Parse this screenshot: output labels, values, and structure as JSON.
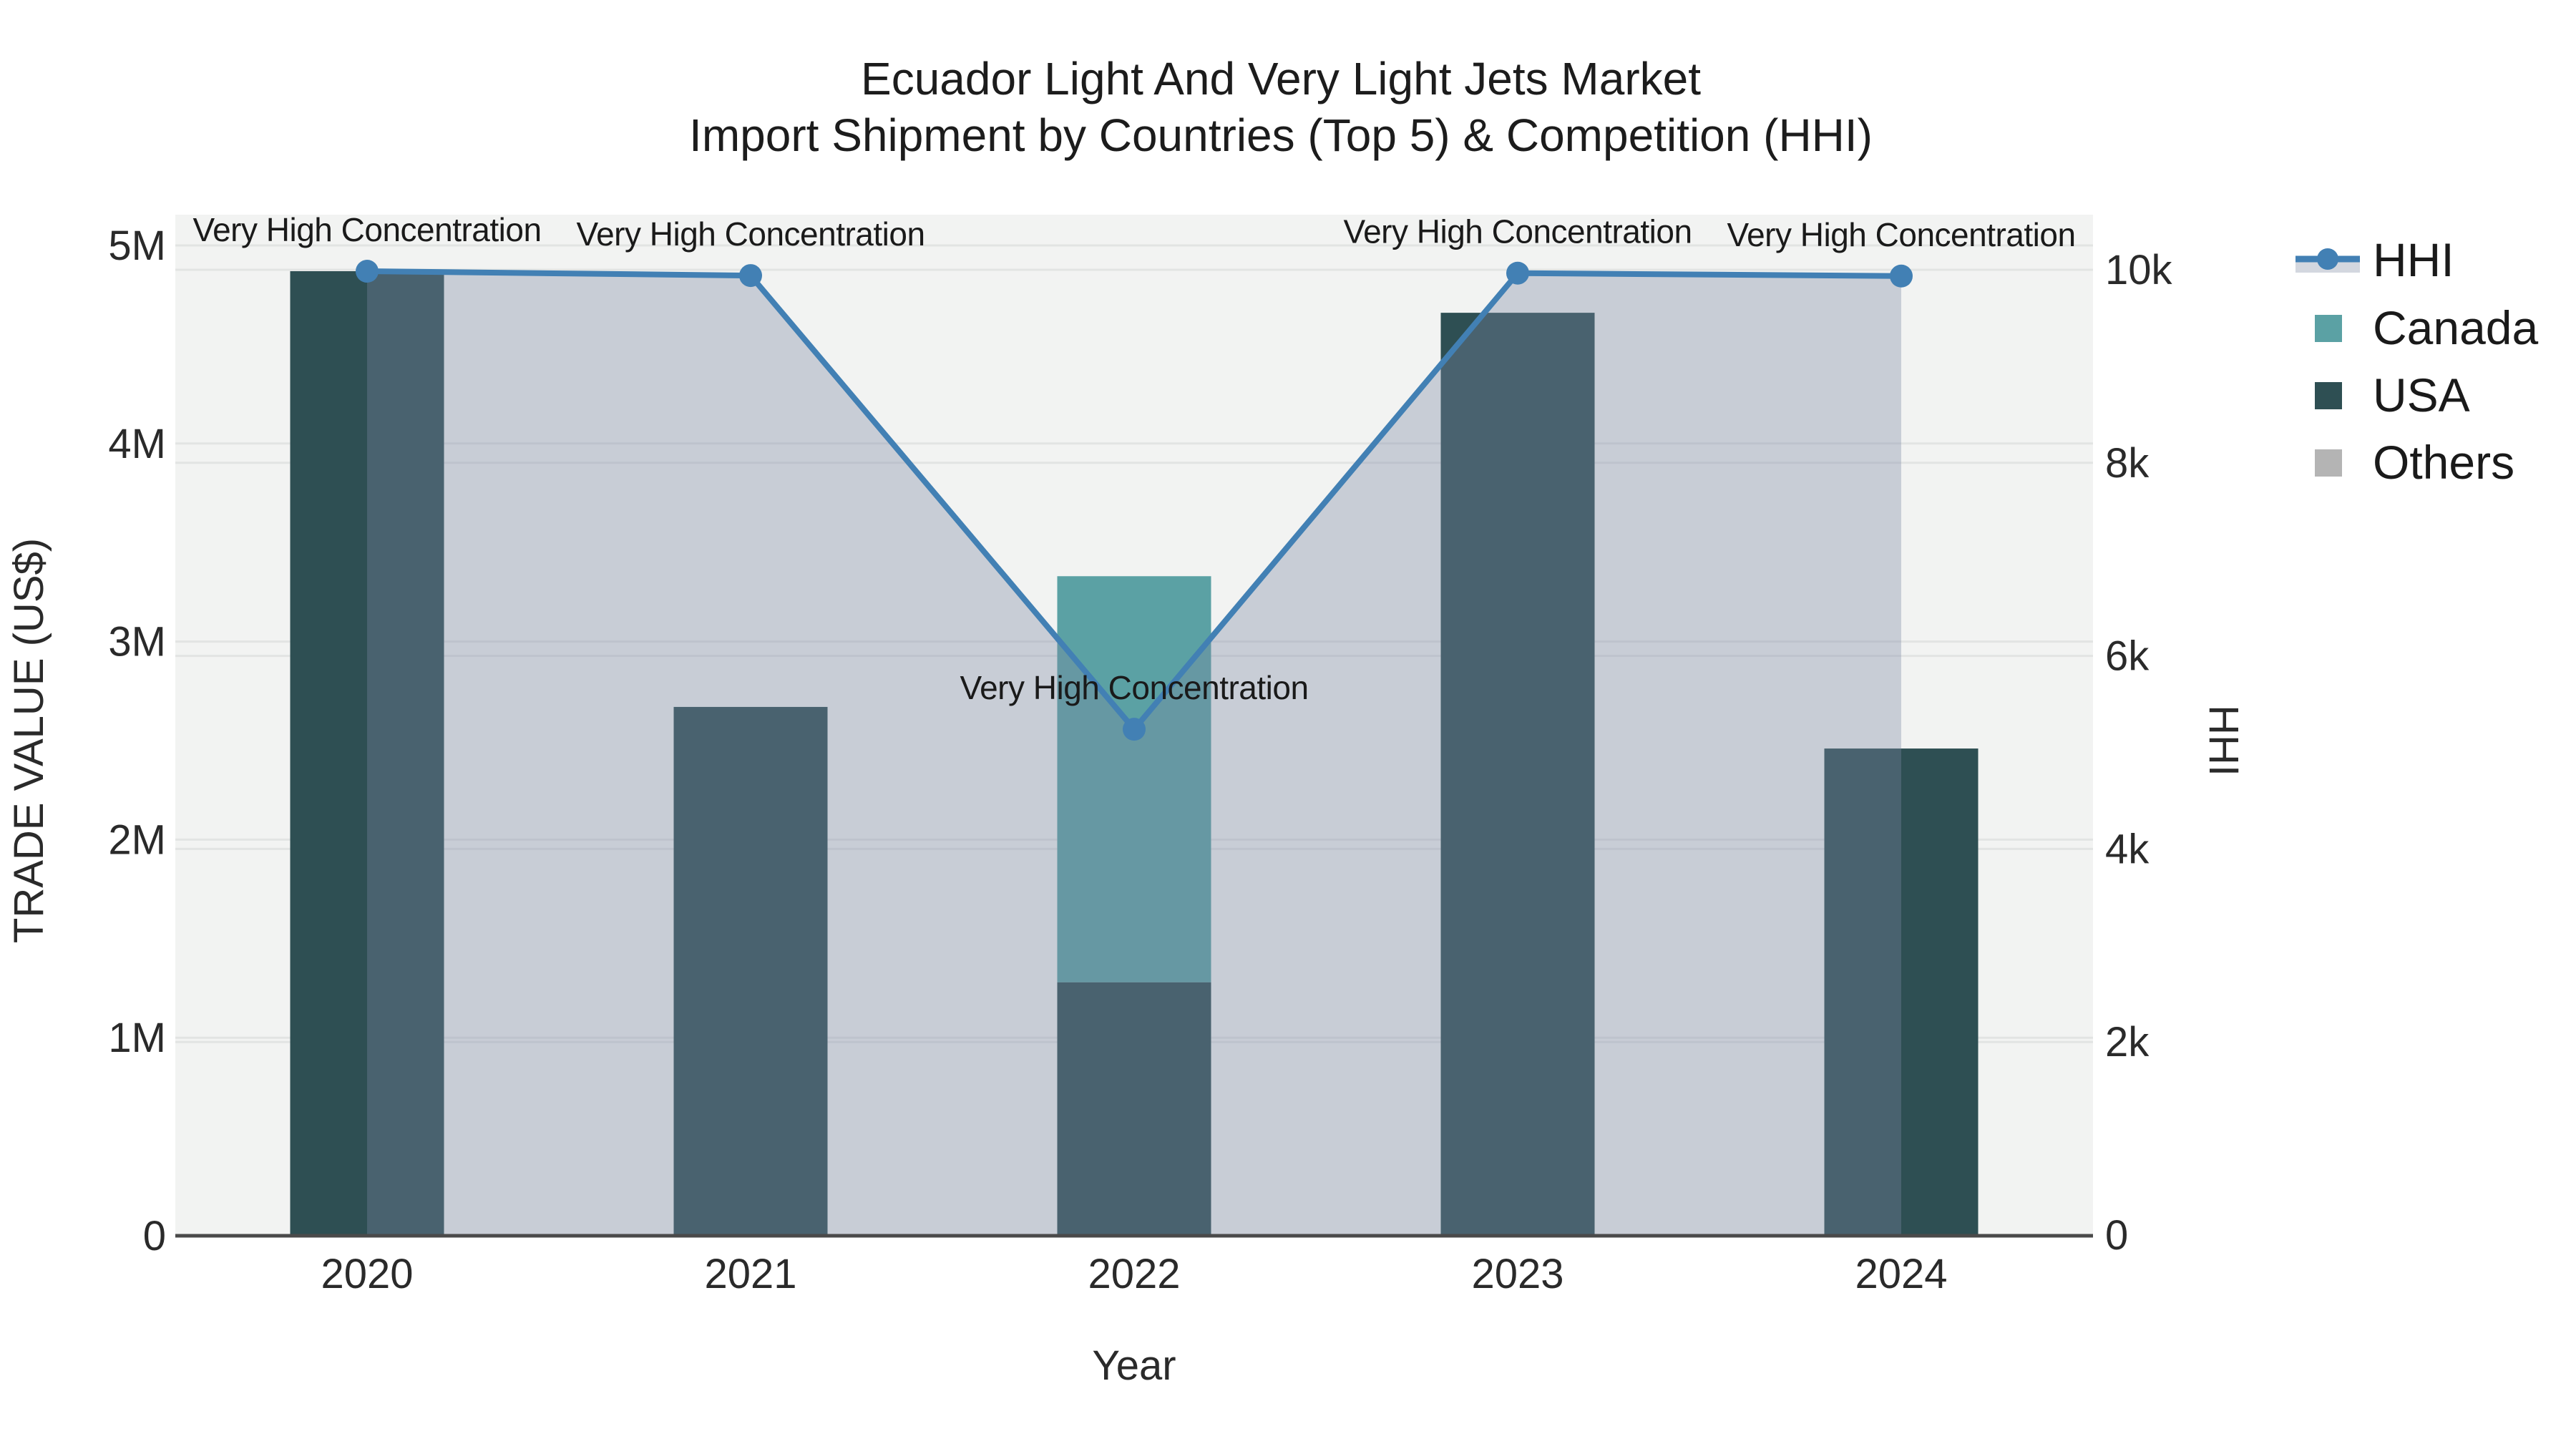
{
  "title": {
    "line1": "Ecuador Light And Very Light Jets Market",
    "line2": "Import Shipment by Countries (Top 5) & Competition (HHI)"
  },
  "axes": {
    "left": {
      "title": "TRADE VALUE (US$)",
      "tick_labels": [
        "0",
        "1M",
        "2M",
        "3M",
        "4M",
        "5M"
      ],
      "tick_values": [
        0,
        1000000,
        2000000,
        3000000,
        4000000,
        5000000
      ],
      "range": [
        0,
        5000000
      ]
    },
    "right": {
      "title": "HHI",
      "tick_labels": [
        "0",
        "2k",
        "4k",
        "6k",
        "8k",
        "10k"
      ],
      "tick_values": [
        0,
        2000,
        4000,
        6000,
        8000,
        10000
      ],
      "range": [
        0,
        10000
      ]
    },
    "bottom": {
      "title": "Year",
      "categories": [
        "2020",
        "2021",
        "2022",
        "2023",
        "2024"
      ]
    }
  },
  "legend": {
    "items": [
      {
        "label": "HHI",
        "color": "#4280b4",
        "kind": "line",
        "band_color": "#d3d7df"
      },
      {
        "label": "Canada",
        "color": "#5ba1a4",
        "kind": "bar"
      },
      {
        "label": "USA",
        "color": "#2e4f53",
        "kind": "bar"
      },
      {
        "label": "Others",
        "color": "#b4b4b4",
        "kind": "bar"
      }
    ]
  },
  "chart_data": {
    "type": "bar+line",
    "title": "Ecuador Light And Very Light Jets Market — Import Shipment by Countries (Top 5) & Competition (HHI)",
    "categories": [
      "2020",
      "2021",
      "2022",
      "2023",
      "2024"
    ],
    "bar_series": [
      {
        "name": "USA",
        "color": "#2e4f53",
        "values_usd": [
          4870000,
          2670000,
          1280000,
          4660000,
          2460000
        ]
      },
      {
        "name": "Canada",
        "color": "#5ba1a4",
        "values_usd": [
          0,
          0,
          2050000,
          0,
          0
        ]
      },
      {
        "name": "Others",
        "color": "#b4b4b4",
        "values_usd": [
          0,
          0,
          0,
          0,
          0
        ]
      }
    ],
    "line_series": {
      "name": "HHI",
      "color": "#4280b4",
      "values": [
        9985,
        9940,
        5240,
        9965,
        9935
      ],
      "area_fill": "rgba(123,136,163,0.35)"
    },
    "annotations": [
      {
        "text": "Very High Concentration",
        "category": "2020"
      },
      {
        "text": "Very High Concentration",
        "category": "2021"
      },
      {
        "text": "Very High Concentration",
        "category": "2022"
      },
      {
        "text": "Very High Concentration",
        "category": "2023"
      },
      {
        "text": "Very High Concentration",
        "category": "2024"
      }
    ],
    "ylabel_left": "TRADE VALUE (US$)",
    "ylabel_right": "HHI",
    "xlabel": "Year",
    "ylim_left": [
      0,
      5000000
    ],
    "ylim_right": [
      0,
      10000
    ],
    "grid": true,
    "legend_position": "right",
    "plot_bg": "#f2f3f2",
    "grid_color": "#e2e4e3",
    "axisline_color": "#4a4a4a"
  }
}
